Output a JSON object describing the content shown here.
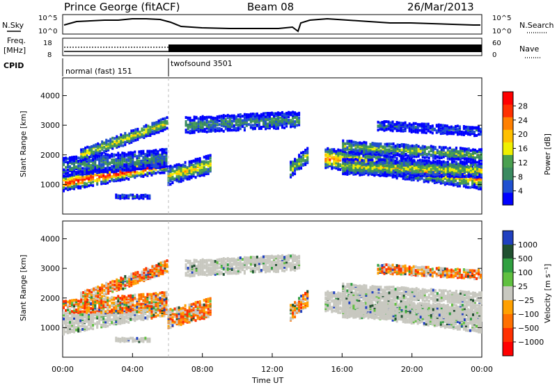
{
  "header": {
    "station": "Prince George (fitACF)",
    "beam": "Beam 08",
    "date": "26/Mar/2013"
  },
  "side_labels": {
    "nsky": "N.Sky",
    "nsearch": "N.Search",
    "freq": "Freq.",
    "freq_unit": "[MHz]",
    "nave": "Nave",
    "cpid": "CPID"
  },
  "top_panel_ticks": {
    "left_top": "10^5",
    "left_bottom": "10^0",
    "right_top": "10^5",
    "right_bottom": "10^0"
  },
  "freq_panel_ticks": {
    "left_top": "18",
    "left_bottom": "8",
    "right_top": "60",
    "right_bottom": "0"
  },
  "cpid_labels": {
    "first": "normal (fast) 151",
    "second": "twofsound 3501"
  },
  "colors": {
    "power_scale": [
      "#0000ff",
      "#2050d0",
      "#3a8a60",
      "#4aa050",
      "#f0f000",
      "#ffc000",
      "#ff8000",
      "#ff3000",
      "#ff0000"
    ],
    "velocity_scale": [
      "#2040c0",
      "#205030",
      "#30a040",
      "#60c040",
      "#c8c8c0",
      "#ffa000",
      "#ff7000",
      "#ff3000",
      "#ff0000"
    ],
    "scatter_gray": "#c8c8c0"
  },
  "chart_data": [
    {
      "type": "heatmap",
      "title": "",
      "quantity": "Power",
      "xlabel": "",
      "ylabel": "Slant Range [km]",
      "ylim": [
        0,
        4600
      ],
      "yticks": [
        "1000",
        "2000",
        "3000",
        "4000"
      ],
      "colorbar": {
        "label": "Power [dB]",
        "ticks": [
          "4",
          "8",
          "12",
          "16",
          "20",
          "24",
          "28"
        ],
        "range": [
          0,
          32
        ]
      }
    },
    {
      "type": "heatmap",
      "title": "",
      "quantity": "Velocity",
      "xlabel": "Time UT",
      "ylabel": "Slant Range [km]",
      "ylim": [
        0,
        4600
      ],
      "yticks": [
        "1000",
        "2000",
        "3000",
        "4000"
      ],
      "xticks": [
        "00:00",
        "04:00",
        "08:00",
        "12:00",
        "16:00",
        "20:00",
        "00:00"
      ],
      "colorbar": {
        "label": "Velocity [m s⁻¹]",
        "ticks": [
          "1000",
          "500",
          "100",
          "25",
          "−25",
          "−100",
          "−500",
          "−1000"
        ]
      }
    }
  ]
}
